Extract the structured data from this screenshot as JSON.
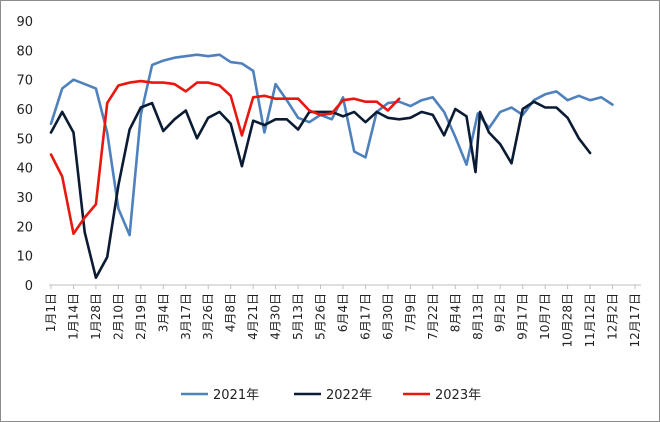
{
  "chart_data": {
    "type": "line",
    "title": "",
    "xlabel": "",
    "ylabel": "",
    "ylim": [
      0,
      90
    ],
    "yticks": [
      0,
      10,
      20,
      30,
      40,
      50,
      60,
      70,
      80,
      90
    ],
    "grid": false,
    "legend_position": "bottom",
    "categories": [
      "1月1日",
      "1月14日",
      "1月28日",
      "2月10日",
      "2月19日",
      "3月4日",
      "3月17日",
      "3月26日",
      "4月8日",
      "4月21日",
      "4月30日",
      "5月13日",
      "5月26日",
      "6月4日",
      "6月17日",
      "6月30日",
      "7月9日",
      "7月22日",
      "8月4日",
      "8月13日",
      "9月2日",
      "9月17日",
      "10月7日",
      "10月28日",
      "11月12日",
      "12月2日",
      "12月17日"
    ],
    "series": [
      {
        "name": "2021年",
        "color": "#4f81bd",
        "values": [
          [
            0,
            55
          ],
          [
            0.5,
            67
          ],
          [
            1,
            70
          ],
          [
            1.5,
            68.5
          ],
          [
            2,
            67
          ],
          [
            2.5,
            52
          ],
          [
            3,
            26
          ],
          [
            3.5,
            17
          ],
          [
            4,
            58
          ],
          [
            4.5,
            75
          ],
          [
            5,
            76.5
          ],
          [
            5.5,
            77.5
          ],
          [
            6,
            78
          ],
          [
            6.5,
            78.5
          ],
          [
            7,
            78
          ],
          [
            7.5,
            78.5
          ],
          [
            8,
            76
          ],
          [
            8.5,
            75.5
          ],
          [
            9,
            73
          ],
          [
            9.5,
            52
          ],
          [
            10,
            68.5
          ],
          [
            10.5,
            63
          ],
          [
            11,
            57
          ],
          [
            11.5,
            55.5
          ],
          [
            12,
            58
          ],
          [
            12.5,
            56.5
          ],
          [
            13,
            64
          ],
          [
            13.5,
            45.5
          ],
          [
            14,
            43.5
          ],
          [
            14.5,
            59
          ],
          [
            15,
            62
          ],
          [
            15.5,
            62.5
          ],
          [
            16,
            61
          ],
          [
            16.5,
            63
          ],
          [
            17,
            64
          ],
          [
            17.5,
            59
          ],
          [
            18,
            50.5
          ],
          [
            18.5,
            41
          ],
          [
            19,
            58.5
          ],
          [
            19.5,
            53.5
          ],
          [
            20,
            59
          ],
          [
            20.5,
            60.5
          ],
          [
            21,
            58
          ],
          [
            21.5,
            63
          ],
          [
            22,
            65
          ],
          [
            22.5,
            66
          ],
          [
            23,
            63
          ],
          [
            23.5,
            64.5
          ],
          [
            24,
            63
          ],
          [
            24.5,
            64
          ],
          [
            25,
            61.5
          ]
        ]
      },
      {
        "name": "2022年",
        "color": "#0b1b33",
        "values": [
          [
            0,
            52
          ],
          [
            0.5,
            59
          ],
          [
            1,
            52
          ],
          [
            1.5,
            18
          ],
          [
            2,
            2.5
          ],
          [
            2.5,
            9.5
          ],
          [
            3,
            34
          ],
          [
            3.5,
            53
          ],
          [
            4,
            60.5
          ],
          [
            4.5,
            62
          ],
          [
            5,
            52.5
          ],
          [
            5.5,
            56.5
          ],
          [
            6,
            59.5
          ],
          [
            6.5,
            50
          ],
          [
            7,
            57
          ],
          [
            7.5,
            59
          ],
          [
            8,
            55
          ],
          [
            8.5,
            40.5
          ],
          [
            9,
            56
          ],
          [
            9.5,
            54.5
          ],
          [
            10,
            56.5
          ],
          [
            10.5,
            56.5
          ],
          [
            11,
            53
          ],
          [
            11.5,
            59
          ],
          [
            12,
            59
          ],
          [
            12.5,
            59
          ],
          [
            13,
            57.5
          ],
          [
            13.5,
            59
          ],
          [
            14,
            55.5
          ],
          [
            14.5,
            59
          ],
          [
            15,
            57
          ],
          [
            15.5,
            56.5
          ],
          [
            16,
            57
          ],
          [
            16.5,
            59
          ],
          [
            17,
            58
          ],
          [
            17.5,
            51
          ],
          [
            18,
            60
          ],
          [
            18.5,
            57.5
          ],
          [
            18.9,
            38.5
          ],
          [
            19.1,
            59
          ],
          [
            19.5,
            52
          ],
          [
            20,
            48
          ],
          [
            20.5,
            41.5
          ],
          [
            21,
            60
          ],
          [
            21.5,
            62.5
          ],
          [
            22,
            60.5
          ],
          [
            22.5,
            60.5
          ],
          [
            23,
            57
          ],
          [
            23.5,
            50
          ],
          [
            24,
            45
          ]
        ]
      },
      {
        "name": "2023年",
        "color": "#e8180f",
        "values": [
          [
            0,
            44.5
          ],
          [
            0.5,
            37
          ],
          [
            1,
            17.5
          ],
          [
            1.5,
            23
          ],
          [
            2,
            27.5
          ],
          [
            2.5,
            62
          ],
          [
            3,
            68
          ],
          [
            3.5,
            69
          ],
          [
            4,
            69.5
          ],
          [
            4.5,
            69
          ],
          [
            5,
            69
          ],
          [
            5.5,
            68.5
          ],
          [
            6,
            66
          ],
          [
            6.5,
            69
          ],
          [
            7,
            69
          ],
          [
            7.5,
            68
          ],
          [
            8,
            64.5
          ],
          [
            8.5,
            51
          ],
          [
            9,
            64
          ],
          [
            9.5,
            64.5
          ],
          [
            10,
            63.5
          ],
          [
            10.5,
            63.5
          ],
          [
            11,
            63.5
          ],
          [
            11.5,
            59.5
          ],
          [
            12,
            58
          ],
          [
            12.5,
            58.5
          ],
          [
            13,
            63
          ],
          [
            13.5,
            63.5
          ],
          [
            14,
            62.5
          ],
          [
            14.5,
            62.5
          ],
          [
            15,
            59.5
          ],
          [
            15.5,
            63.5
          ]
        ]
      }
    ]
  }
}
